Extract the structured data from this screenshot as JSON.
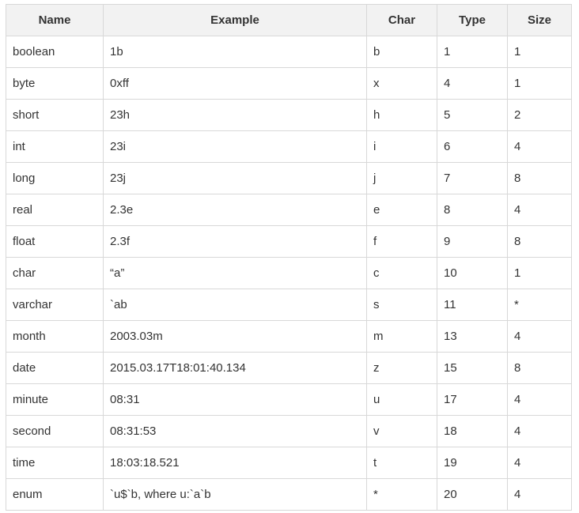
{
  "headers": {
    "name": "Name",
    "example": "Example",
    "char": "Char",
    "type": "Type",
    "size": "Size"
  },
  "rows": [
    {
      "name": "boolean",
      "example": "1b",
      "char": "b",
      "type": "1",
      "size": "1"
    },
    {
      "name": "byte",
      "example": "0xff",
      "char": "x",
      "type": "4",
      "size": "1"
    },
    {
      "name": "short",
      "example": "23h",
      "char": "h",
      "type": "5",
      "size": "2"
    },
    {
      "name": "int",
      "example": "23i",
      "char": "i",
      "type": "6",
      "size": "4"
    },
    {
      "name": "long",
      "example": "23j",
      "char": "j",
      "type": "7",
      "size": "8"
    },
    {
      "name": "real",
      "example": "2.3e",
      "char": "e",
      "type": "8",
      "size": "4"
    },
    {
      "name": "float",
      "example": "2.3f",
      "char": "f",
      "type": "9",
      "size": "8"
    },
    {
      "name": "char",
      "example": "“a”",
      "char": "c",
      "type": "10",
      "size": "1"
    },
    {
      "name": "varchar",
      "example": "`ab",
      "char": "s",
      "type": "11",
      "size": "*"
    },
    {
      "name": "month",
      "example": "2003.03m",
      "char": "m",
      "type": "13",
      "size": "4"
    },
    {
      "name": "date",
      "example": "2015.03.17T18:01:40.134",
      "char": "z",
      "type": "15",
      "size": "8"
    },
    {
      "name": "minute",
      "example": "08:31",
      "char": "u",
      "type": "17",
      "size": "4"
    },
    {
      "name": "second",
      "example": "08:31:53",
      "char": "v",
      "type": "18",
      "size": "4"
    },
    {
      "name": "time",
      "example": "18:03:18.521",
      "char": "t",
      "type": "19",
      "size": "4"
    },
    {
      "name": "enum",
      "example": "`u$`b, where u:`a`b",
      "char": "*",
      "type": "20",
      "size": "4"
    }
  ]
}
